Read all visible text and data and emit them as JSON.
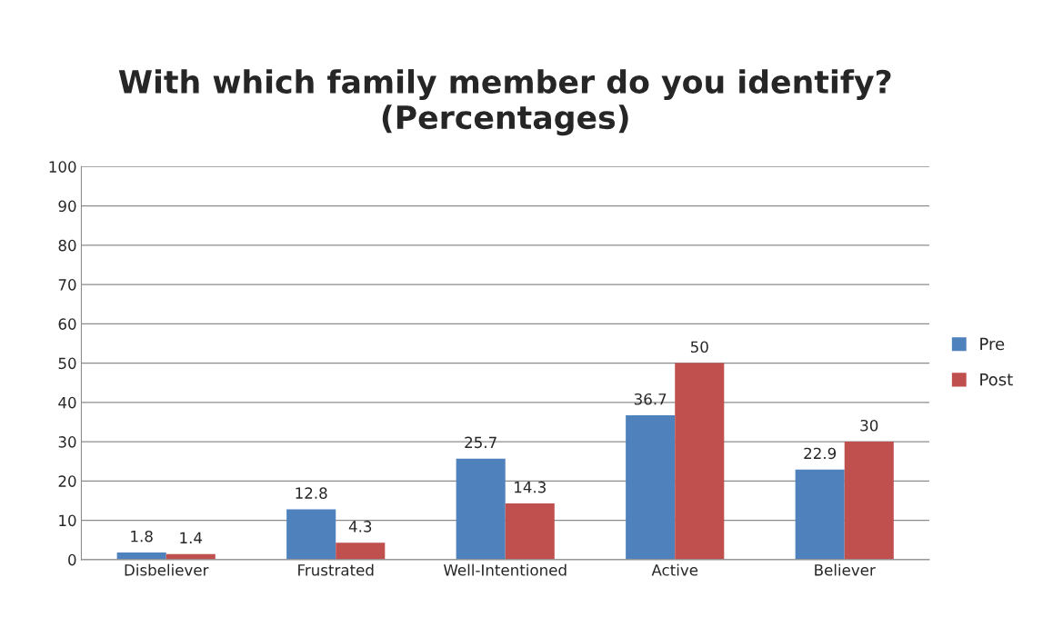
{
  "chart_data": {
    "type": "bar",
    "title": "With which family member do you identify?\n(Percentages)",
    "categories": [
      "Disbeliever",
      "Frustrated",
      "Well-Intentioned",
      "Active",
      "Believer"
    ],
    "series": [
      {
        "name": "Pre",
        "color": "#4f81bd",
        "values": [
          1.8,
          12.8,
          25.7,
          36.7,
          22.9
        ]
      },
      {
        "name": "Post",
        "color": "#c0504d",
        "values": [
          1.4,
          4.3,
          14.3,
          50,
          30
        ]
      }
    ],
    "ylim": [
      0,
      100
    ],
    "yticks": [
      0,
      10,
      20,
      30,
      40,
      50,
      60,
      70,
      80,
      90,
      100
    ],
    "grid": "y",
    "legend": "right",
    "data_labels": true
  }
}
